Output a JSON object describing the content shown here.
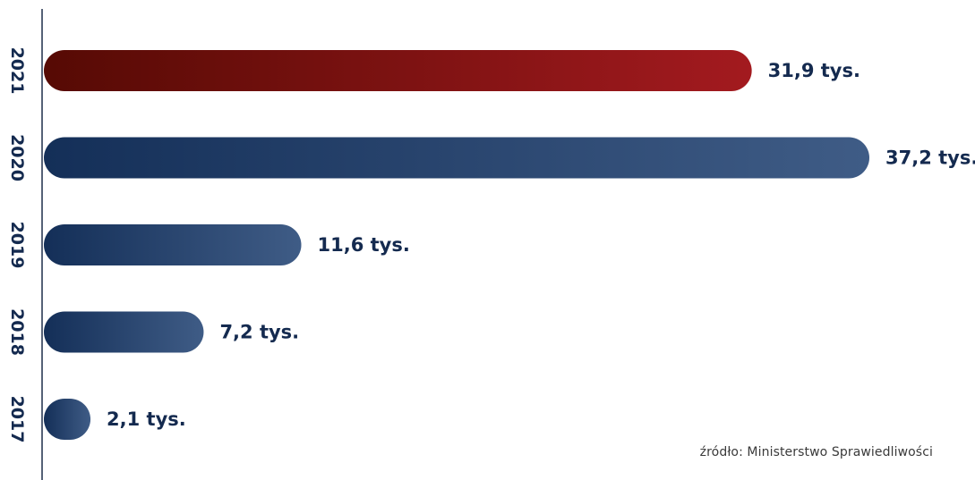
{
  "chart_data": {
    "type": "bar",
    "orientation": "horizontal",
    "categories": [
      "2021",
      "2020",
      "2019",
      "2018",
      "2017"
    ],
    "values": [
      31.9,
      37.2,
      11.6,
      7.2,
      2.1
    ],
    "value_labels": [
      "31,9 tys.",
      "37,2 tys.",
      "11,6 tys.",
      "7,2 tys.",
      "2,1 tys."
    ],
    "xlim": [
      0,
      37.2
    ],
    "grid": false,
    "legend": "none",
    "highlight_category": "2021"
  },
  "source": "źródło: Ministerstwo Sprawiedliwości",
  "colors": {
    "highlight_start": "#560a04",
    "highlight_end": "#a31a1f",
    "bar_start": "#142f58",
    "bar_end": "#3f5c86",
    "label": "#142a4f",
    "axis": "#1f2f4a"
  }
}
